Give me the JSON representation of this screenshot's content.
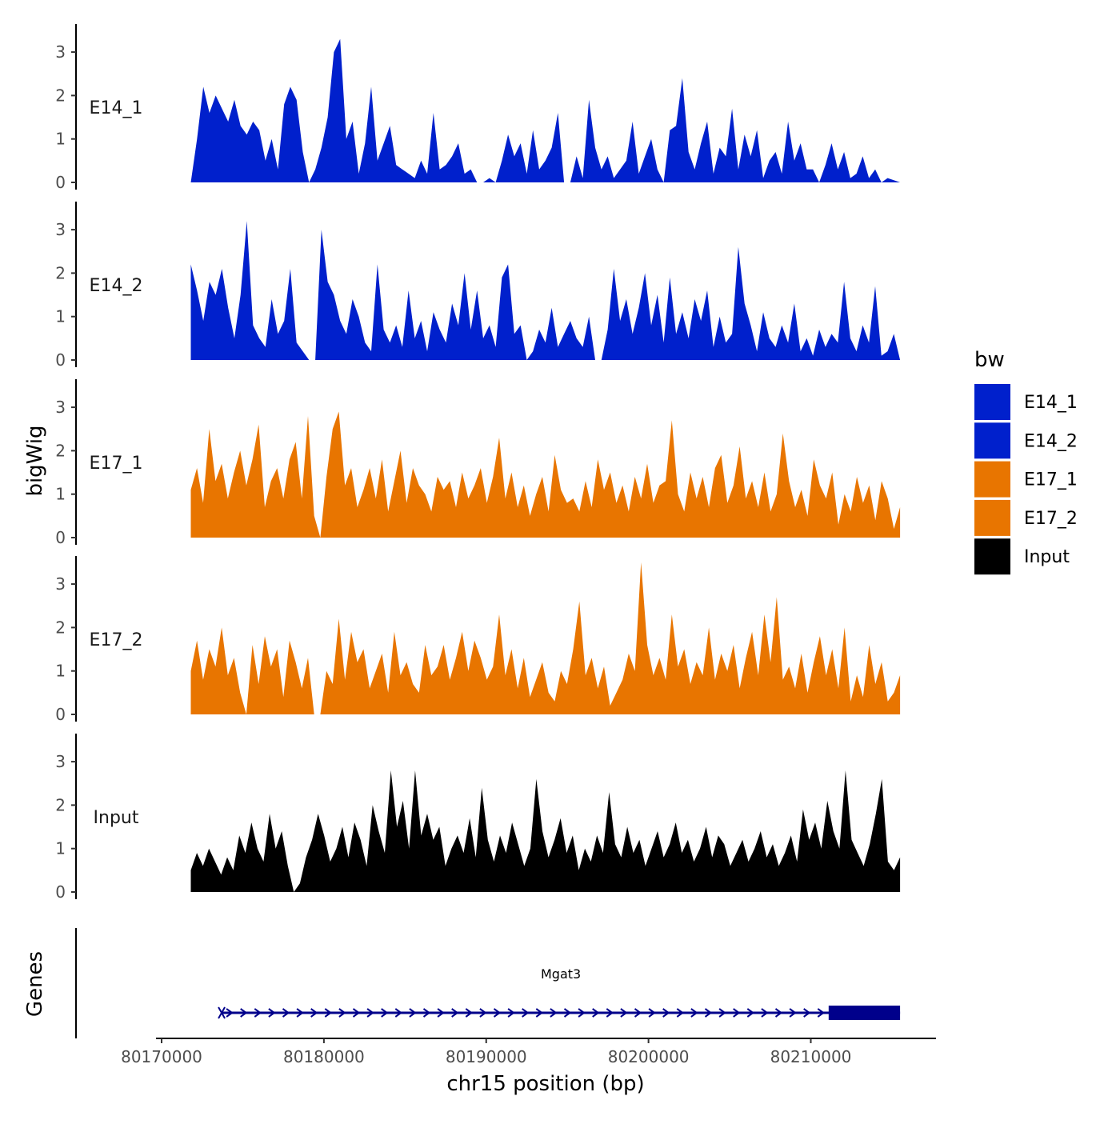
{
  "chart_data": {
    "type": "area",
    "xlabel": "chr15 position (bp)",
    "ylabel": "bigWig",
    "genes_label": "Genes",
    "xlim": [
      80169000,
      80217500
    ],
    "xticks": [
      80170000,
      80180000,
      80190000,
      80200000,
      80210000
    ],
    "xtick_labels": [
      "80170000",
      "80180000",
      "80190000",
      "80200000",
      "80210000"
    ],
    "ylim": [
      0,
      3.6
    ],
    "yticks": [
      0,
      1,
      2,
      3
    ],
    "ytick_labels": [
      "0",
      "1",
      "2",
      "3"
    ],
    "legend": {
      "title": "bw",
      "entries": [
        {
          "label": "E14_1",
          "color": "#0020CC"
        },
        {
          "label": "E14_2",
          "color": "#0020CC"
        },
        {
          "label": "E17_1",
          "color": "#E87500"
        },
        {
          "label": "E17_2",
          "color": "#E87500"
        },
        {
          "label": "Input",
          "color": "#000000"
        }
      ]
    },
    "series": [
      {
        "name": "E14_1",
        "color": "#0020CC",
        "x_start": 80171800,
        "x_end": 80215500,
        "values": [
          0.0,
          1.0,
          2.2,
          1.6,
          2.0,
          1.7,
          1.4,
          1.9,
          1.3,
          1.1,
          1.4,
          1.2,
          0.5,
          1.0,
          0.3,
          1.8,
          2.2,
          1.9,
          0.7,
          0.0,
          0.3,
          0.8,
          1.5,
          3.0,
          3.3,
          1.0,
          1.4,
          0.2,
          0.9,
          2.2,
          0.5,
          0.9,
          1.3,
          0.4,
          0.3,
          0.2,
          0.1,
          0.5,
          0.2,
          1.6,
          0.3,
          0.4,
          0.6,
          0.9,
          0.2,
          0.3,
          0.0,
          0.0,
          0.1,
          0.0,
          0.5,
          1.1,
          0.6,
          0.9,
          0.2,
          1.2,
          0.3,
          0.5,
          0.8,
          1.6,
          0.0,
          0.0,
          0.6,
          0.1,
          1.9,
          0.8,
          0.3,
          0.6,
          0.1,
          0.3,
          0.5,
          1.4,
          0.2,
          0.6,
          1.0,
          0.3,
          0.0,
          1.2,
          1.3,
          2.4,
          0.7,
          0.3,
          0.9,
          1.4,
          0.2,
          0.8,
          0.6,
          1.7,
          0.3,
          1.1,
          0.6,
          1.2,
          0.1,
          0.5,
          0.7,
          0.2,
          1.4,
          0.5,
          0.9,
          0.3,
          0.3,
          0.0,
          0.4,
          0.9,
          0.3,
          0.7,
          0.1,
          0.2,
          0.6,
          0.1,
          0.3,
          0.0,
          0.1,
          0.05,
          0.0
        ]
      },
      {
        "name": "E14_2",
        "color": "#0020CC",
        "x_start": 80171800,
        "x_end": 80215500,
        "values": [
          2.2,
          1.6,
          0.9,
          1.8,
          1.5,
          2.1,
          1.2,
          0.5,
          1.5,
          3.2,
          0.8,
          0.5,
          0.3,
          1.4,
          0.6,
          0.9,
          2.1,
          0.4,
          0.2,
          0.0,
          0.0,
          3.0,
          1.8,
          1.5,
          0.9,
          0.6,
          1.4,
          1.0,
          0.4,
          0.2,
          2.2,
          0.7,
          0.4,
          0.8,
          0.3,
          1.6,
          0.5,
          0.9,
          0.2,
          1.1,
          0.7,
          0.4,
          1.3,
          0.8,
          2.0,
          0.7,
          1.6,
          0.5,
          0.8,
          0.3,
          1.9,
          2.2,
          0.6,
          0.8,
          0.0,
          0.2,
          0.7,
          0.4,
          1.2,
          0.3,
          0.6,
          0.9,
          0.5,
          0.3,
          1.0,
          0.0,
          0.0,
          0.7,
          2.1,
          0.9,
          1.4,
          0.6,
          1.2,
          2.0,
          0.8,
          1.5,
          0.4,
          1.9,
          0.6,
          1.1,
          0.5,
          1.4,
          0.9,
          1.6,
          0.3,
          1.0,
          0.4,
          0.6,
          2.6,
          1.3,
          0.8,
          0.2,
          1.1,
          0.5,
          0.3,
          0.8,
          0.4,
          1.3,
          0.2,
          0.5,
          0.1,
          0.7,
          0.3,
          0.6,
          0.4,
          1.8,
          0.5,
          0.2,
          0.8,
          0.4,
          1.7,
          0.1,
          0.2,
          0.6,
          0.0
        ]
      },
      {
        "name": "E17_1",
        "color": "#E87500",
        "x_start": 80171800,
        "x_end": 80215500,
        "values": [
          1.1,
          1.6,
          0.8,
          2.5,
          1.3,
          1.7,
          0.9,
          1.5,
          2.0,
          1.2,
          1.8,
          2.6,
          0.7,
          1.3,
          1.6,
          0.9,
          1.8,
          2.2,
          0.9,
          2.8,
          0.5,
          0.0,
          1.4,
          2.5,
          2.9,
          1.2,
          1.6,
          0.7,
          1.1,
          1.6,
          0.9,
          1.8,
          0.6,
          1.3,
          2.0,
          0.8,
          1.6,
          1.2,
          1.0,
          0.6,
          1.4,
          1.1,
          1.3,
          0.7,
          1.5,
          0.9,
          1.2,
          1.6,
          0.8,
          1.4,
          2.3,
          0.9,
          1.5,
          0.7,
          1.2,
          0.5,
          1.0,
          1.4,
          0.6,
          1.9,
          1.1,
          0.8,
          0.9,
          0.6,
          1.3,
          0.7,
          1.8,
          1.1,
          1.5,
          0.8,
          1.2,
          0.6,
          1.4,
          0.9,
          1.7,
          0.8,
          1.2,
          1.3,
          2.7,
          1.0,
          0.6,
          1.5,
          0.9,
          1.4,
          0.7,
          1.6,
          1.9,
          0.8,
          1.2,
          2.1,
          0.9,
          1.3,
          0.7,
          1.5,
          0.6,
          1.0,
          2.4,
          1.3,
          0.7,
          1.1,
          0.5,
          1.8,
          1.2,
          0.9,
          1.5,
          0.3,
          1.0,
          0.6,
          1.4,
          0.8,
          1.2,
          0.4,
          1.3,
          0.9,
          0.2,
          0.7
        ]
      },
      {
        "name": "E17_2",
        "color": "#E87500",
        "x_start": 80171800,
        "x_end": 80215500,
        "values": [
          1.0,
          1.7,
          0.8,
          1.5,
          1.1,
          2.0,
          0.9,
          1.3,
          0.5,
          0.0,
          1.6,
          0.7,
          1.8,
          1.1,
          1.5,
          0.4,
          1.7,
          1.2,
          0.6,
          1.3,
          0.0,
          0.0,
          1.0,
          0.7,
          2.2,
          0.8,
          1.9,
          1.2,
          1.5,
          0.6,
          1.0,
          1.4,
          0.5,
          1.9,
          0.9,
          1.2,
          0.7,
          0.5,
          1.6,
          0.9,
          1.1,
          1.6,
          0.8,
          1.3,
          1.9,
          1.0,
          1.7,
          1.3,
          0.8,
          1.1,
          2.3,
          0.9,
          1.5,
          0.6,
          1.3,
          0.4,
          0.8,
          1.2,
          0.5,
          0.3,
          1.0,
          0.7,
          1.5,
          2.6,
          0.9,
          1.3,
          0.6,
          1.1,
          0.2,
          0.5,
          0.8,
          1.4,
          1.0,
          3.5,
          1.6,
          0.9,
          1.3,
          0.8,
          2.3,
          1.1,
          1.5,
          0.7,
          1.2,
          0.9,
          2.0,
          0.8,
          1.4,
          1.0,
          1.6,
          0.6,
          1.3,
          1.9,
          0.9,
          2.3,
          1.2,
          2.7,
          0.8,
          1.1,
          0.6,
          1.4,
          0.5,
          1.2,
          1.8,
          0.9,
          1.5,
          0.6,
          2.0,
          0.3,
          0.9,
          0.4,
          1.6,
          0.7,
          1.2,
          0.3,
          0.5,
          0.9
        ]
      },
      {
        "name": "Input",
        "color": "#000000",
        "x_start": 80171800,
        "x_end": 80215500,
        "values": [
          0.5,
          0.9,
          0.6,
          1.0,
          0.7,
          0.4,
          0.8,
          0.5,
          1.3,
          0.9,
          1.6,
          1.0,
          0.7,
          1.8,
          1.0,
          1.4,
          0.6,
          0.0,
          0.2,
          0.8,
          1.2,
          1.8,
          1.3,
          0.7,
          1.0,
          1.5,
          0.8,
          1.6,
          1.2,
          0.6,
          2.0,
          1.4,
          0.9,
          2.8,
          1.5,
          2.1,
          1.0,
          2.8,
          1.3,
          1.8,
          1.2,
          1.5,
          0.6,
          1.0,
          1.3,
          0.9,
          1.7,
          0.8,
          2.4,
          1.2,
          0.7,
          1.3,
          0.9,
          1.6,
          1.1,
          0.6,
          1.0,
          2.6,
          1.4,
          0.8,
          1.2,
          1.7,
          0.9,
          1.3,
          0.5,
          1.0,
          0.7,
          1.3,
          0.9,
          2.3,
          1.1,
          0.8,
          1.5,
          0.9,
          1.2,
          0.6,
          1.0,
          1.4,
          0.8,
          1.1,
          1.6,
          0.9,
          1.2,
          0.7,
          1.0,
          1.5,
          0.8,
          1.3,
          1.1,
          0.6,
          0.9,
          1.2,
          0.7,
          1.0,
          1.4,
          0.8,
          1.1,
          0.6,
          0.9,
          1.3,
          0.7,
          1.9,
          1.2,
          1.6,
          1.0,
          2.1,
          1.4,
          1.0,
          2.8,
          1.2,
          0.9,
          0.6,
          1.1,
          1.8,
          2.6,
          0.7,
          0.5,
          0.8
        ]
      }
    ],
    "gene": {
      "name": "Mgat3",
      "color": "#00008B",
      "strand": "+",
      "start": 80173700,
      "end": 80215500,
      "exon_start": 80211100,
      "exon_end": 80215500
    }
  }
}
